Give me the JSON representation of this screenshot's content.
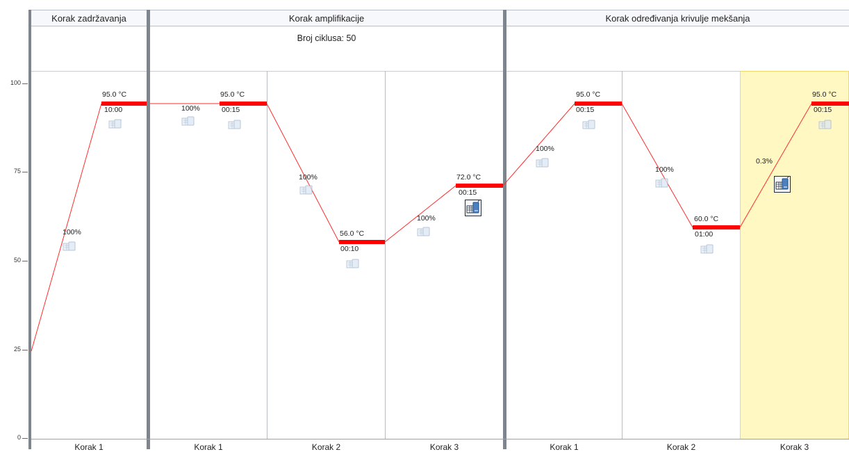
{
  "stages": [
    {
      "name": "Korak zadržavanja"
    },
    {
      "name": "Korak amplifikacije",
      "cycles": "Broj ciklusa: 50"
    },
    {
      "name": "Korak određivanja krivulje mekšanja"
    }
  ],
  "y_axis": {
    "ticks": [
      "100",
      "75",
      "50",
      "25",
      "0"
    ]
  },
  "steps": [
    {
      "label": "Korak 1",
      "temp": "95.0 °C",
      "time": "10:00",
      "ramp": "100%"
    },
    {
      "label": "Korak 1",
      "temp": "95.0 °C",
      "time": "00:15",
      "ramp": "100%"
    },
    {
      "label": "Korak 2",
      "temp": "56.0 °C",
      "time": "00:10",
      "ramp": "100%"
    },
    {
      "label": "Korak 3",
      "temp": "72.0 °C",
      "time": "00:15",
      "ramp": "100%"
    },
    {
      "label": "Korak 1",
      "temp": "95.0 °C",
      "time": "00:15",
      "ramp": "100%"
    },
    {
      "label": "Korak 2",
      "temp": "60.0 °C",
      "time": "01:00",
      "ramp": "100%"
    },
    {
      "label": "Korak 3",
      "temp": "95.0 °C",
      "time": "00:15",
      "ramp": "0.3%",
      "selected": true
    }
  ],
  "icons": {
    "data_collection": "camera-data-icon"
  },
  "colors": {
    "hold_line": "#ff0000",
    "ramp_line": "#ff2d2d",
    "selected_bg": "#fff8c2"
  }
}
